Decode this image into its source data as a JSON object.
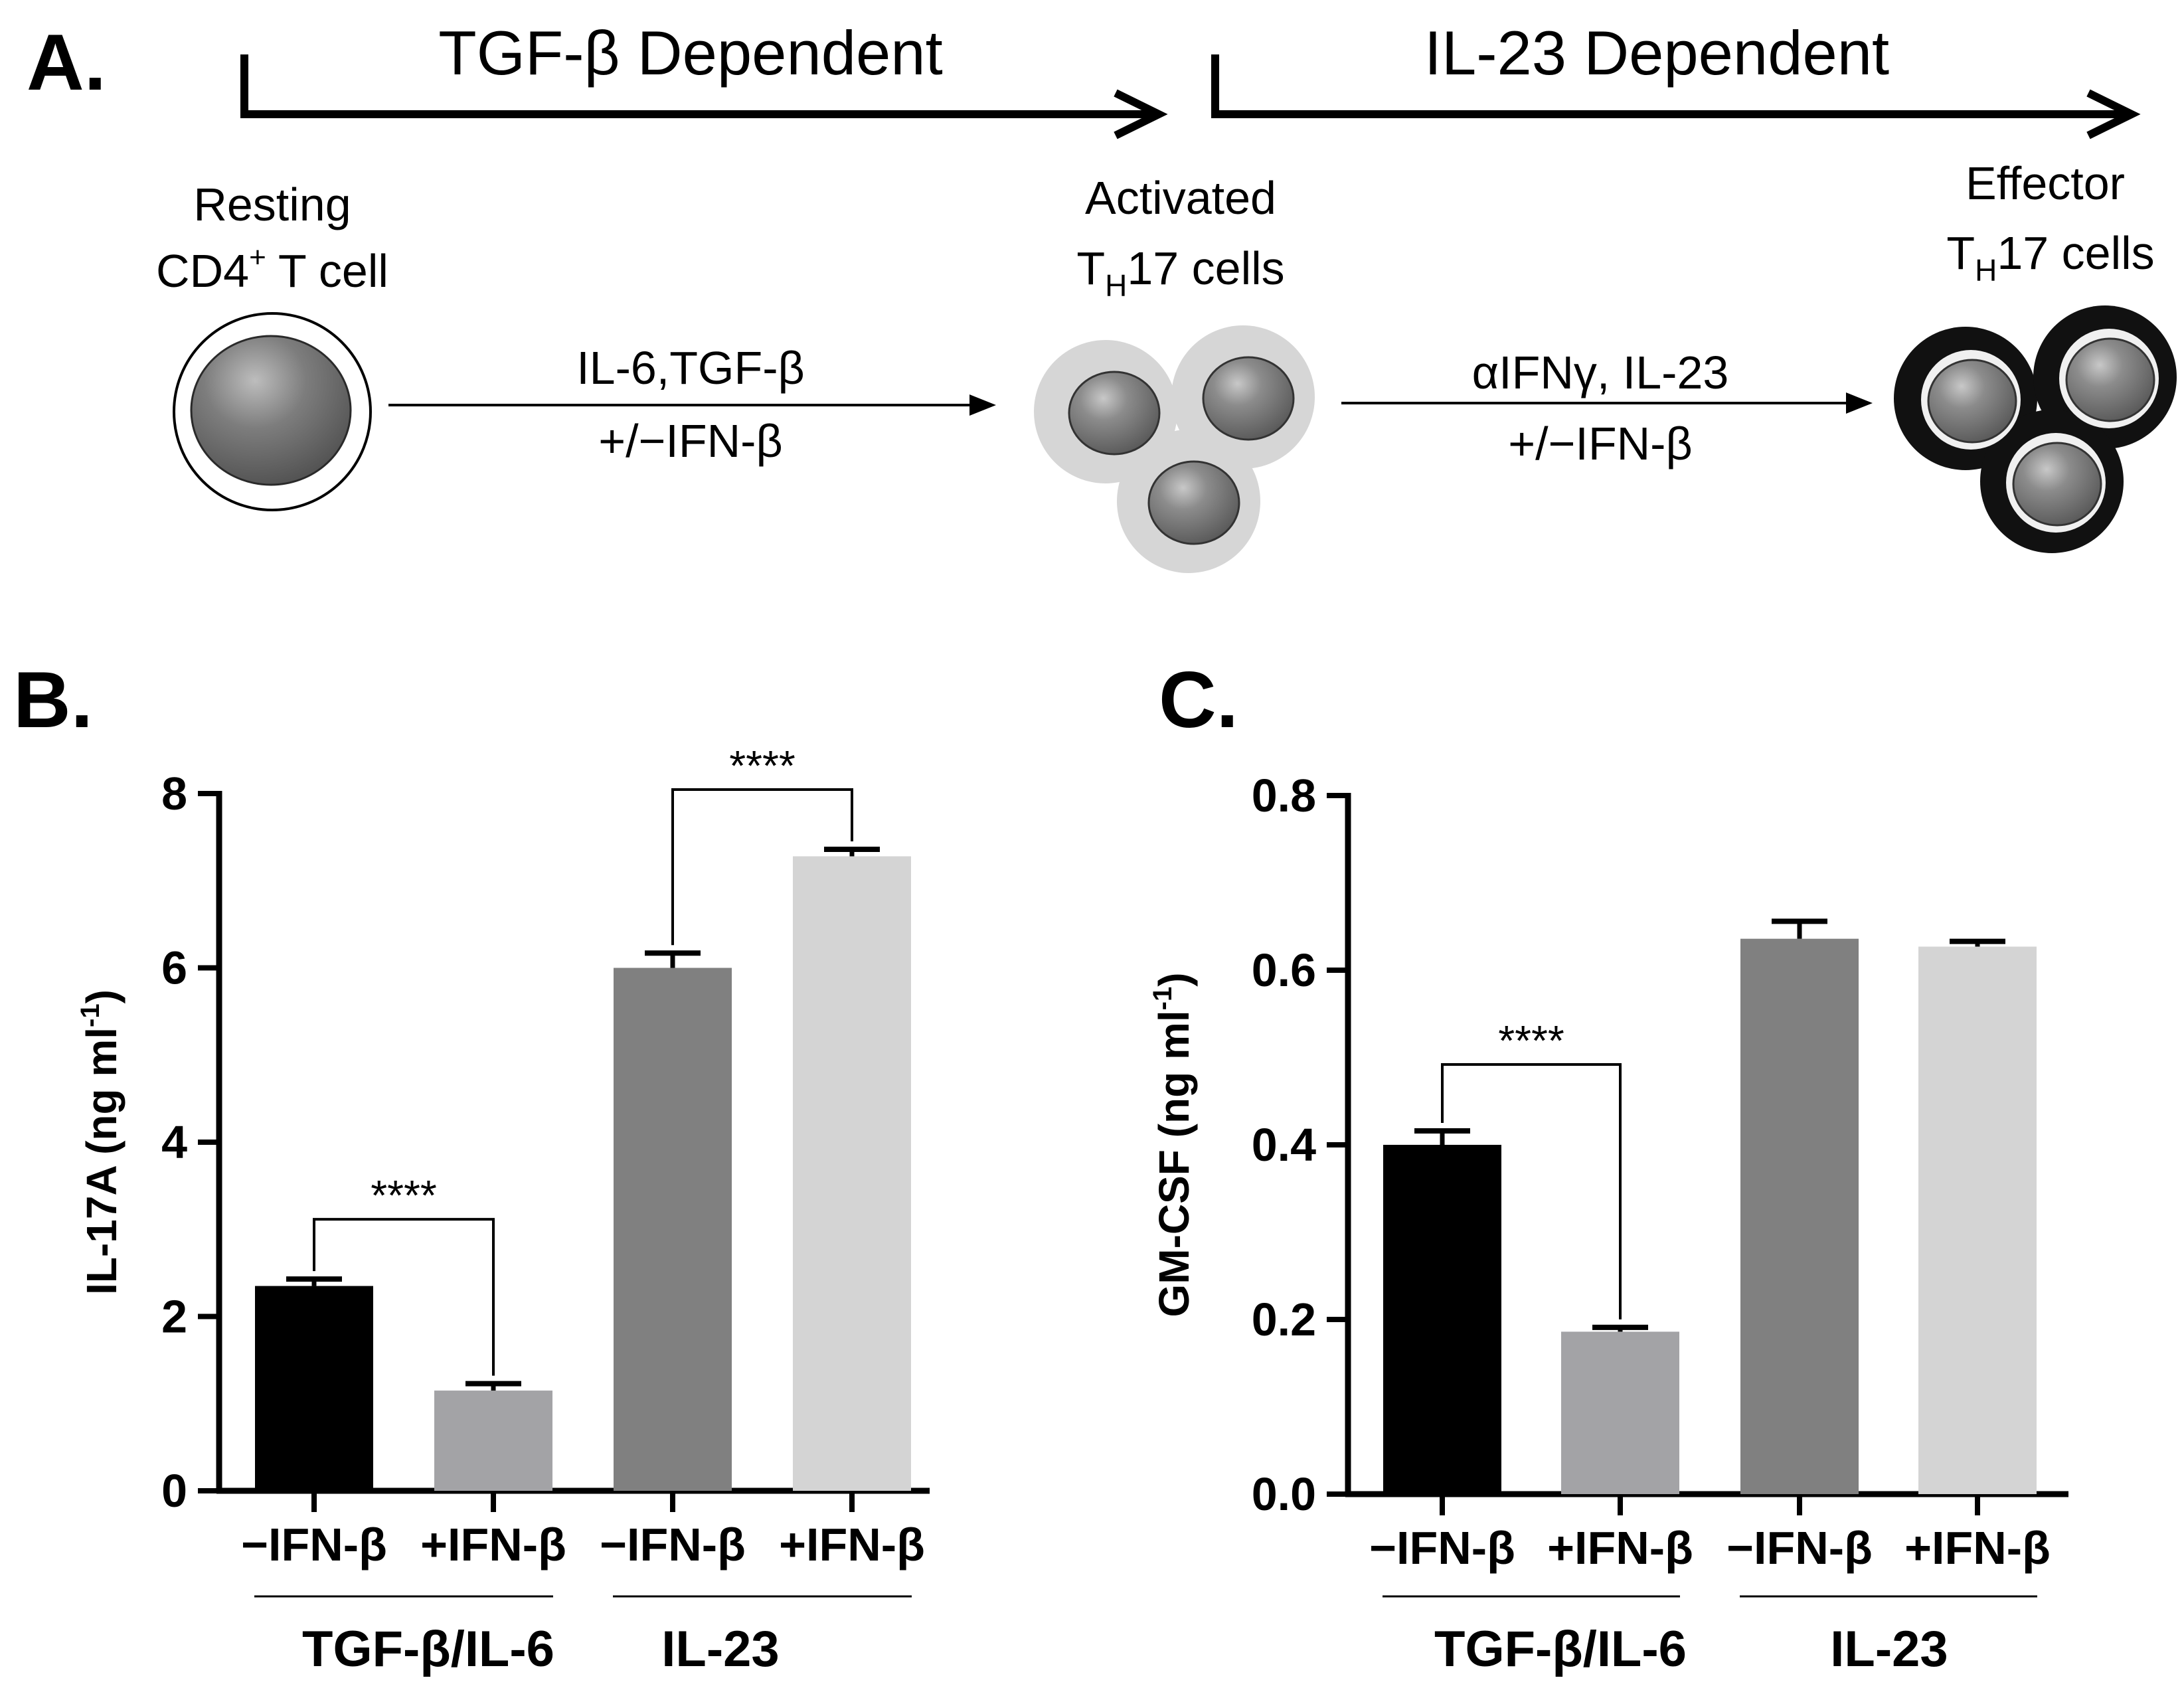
{
  "panel_a": {
    "label": "A.",
    "phase_left": "TGF-β Dependent",
    "phase_right": "IL-23 Dependent",
    "resting_line1": "Resting",
    "resting_line2_main": "CD4",
    "resting_line2_sup": "+",
    "resting_line2_rest": " T cell",
    "activated_line1": "Activated",
    "activated_line2_T": "T",
    "activated_line2_sub": "H",
    "activated_line2_rest": "17 cells",
    "effector_line1": "Effector",
    "effector_line2_T": "T",
    "effector_line2_sub": "H",
    "effector_line2_rest": "17 cells",
    "step1_line1": "IL-6,TGF-β",
    "step1_line2": "+/−IFN-β",
    "step2_line1": "αIFNγ, IL-23",
    "step2_line2": "+/−IFN-β"
  },
  "panel_b": {
    "label": "B."
  },
  "panel_c": {
    "label": "C."
  },
  "colors": {
    "black": "#000000",
    "light_gray": "#a3a3a6",
    "dark_gray": "#808080",
    "pale_gray": "#d4d4d4",
    "activated_halo": "#d6d6d6",
    "nucleus": "#7a7a7a"
  },
  "chart_data": [
    {
      "type": "bar",
      "panel": "B",
      "ylabel_main": "IL-17A (ng ml",
      "ylabel_sup": "-1",
      "ylabel_end": ")",
      "ylim": [
        0,
        8
      ],
      "yticks": [
        0,
        2,
        4,
        6,
        8
      ],
      "categories": [
        "−IFN-β",
        "+IFN-β",
        "−IFN-β",
        "+IFN-β"
      ],
      "groups": [
        "TGF-β/IL-6",
        "IL-23"
      ],
      "values": [
        2.35,
        1.15,
        6.0,
        7.28
      ],
      "errors": [
        0.08,
        0.08,
        0.17,
        0.08
      ],
      "colors": [
        "#000000",
        "#a3a3a6",
        "#808080",
        "#d4d4d4"
      ],
      "significance": [
        {
          "from": 0,
          "to": 1,
          "label": "****"
        },
        {
          "from": 2,
          "to": 3,
          "label": "****"
        }
      ]
    },
    {
      "type": "bar",
      "panel": "C",
      "ylabel_main": "GM-CSF (ng ml",
      "ylabel_sup": "-1",
      "ylabel_end": ")",
      "ylim": [
        0,
        0.8
      ],
      "yticks": [
        "0.0",
        "0.2",
        "0.4",
        "0.6",
        "0.8"
      ],
      "categories": [
        "−IFN-β",
        "+IFN-β",
        "−IFN-β",
        "+IFN-β"
      ],
      "groups": [
        "TGF-β/IL-6",
        "IL-23"
      ],
      "values": [
        0.4,
        0.186,
        0.636,
        0.627
      ],
      "errors": [
        0.016,
        0.005,
        0.02,
        0.006
      ],
      "colors": [
        "#000000",
        "#a3a3a6",
        "#808080",
        "#d4d4d4"
      ],
      "significance": [
        {
          "from": 0,
          "to": 1,
          "label": "****"
        }
      ]
    }
  ]
}
